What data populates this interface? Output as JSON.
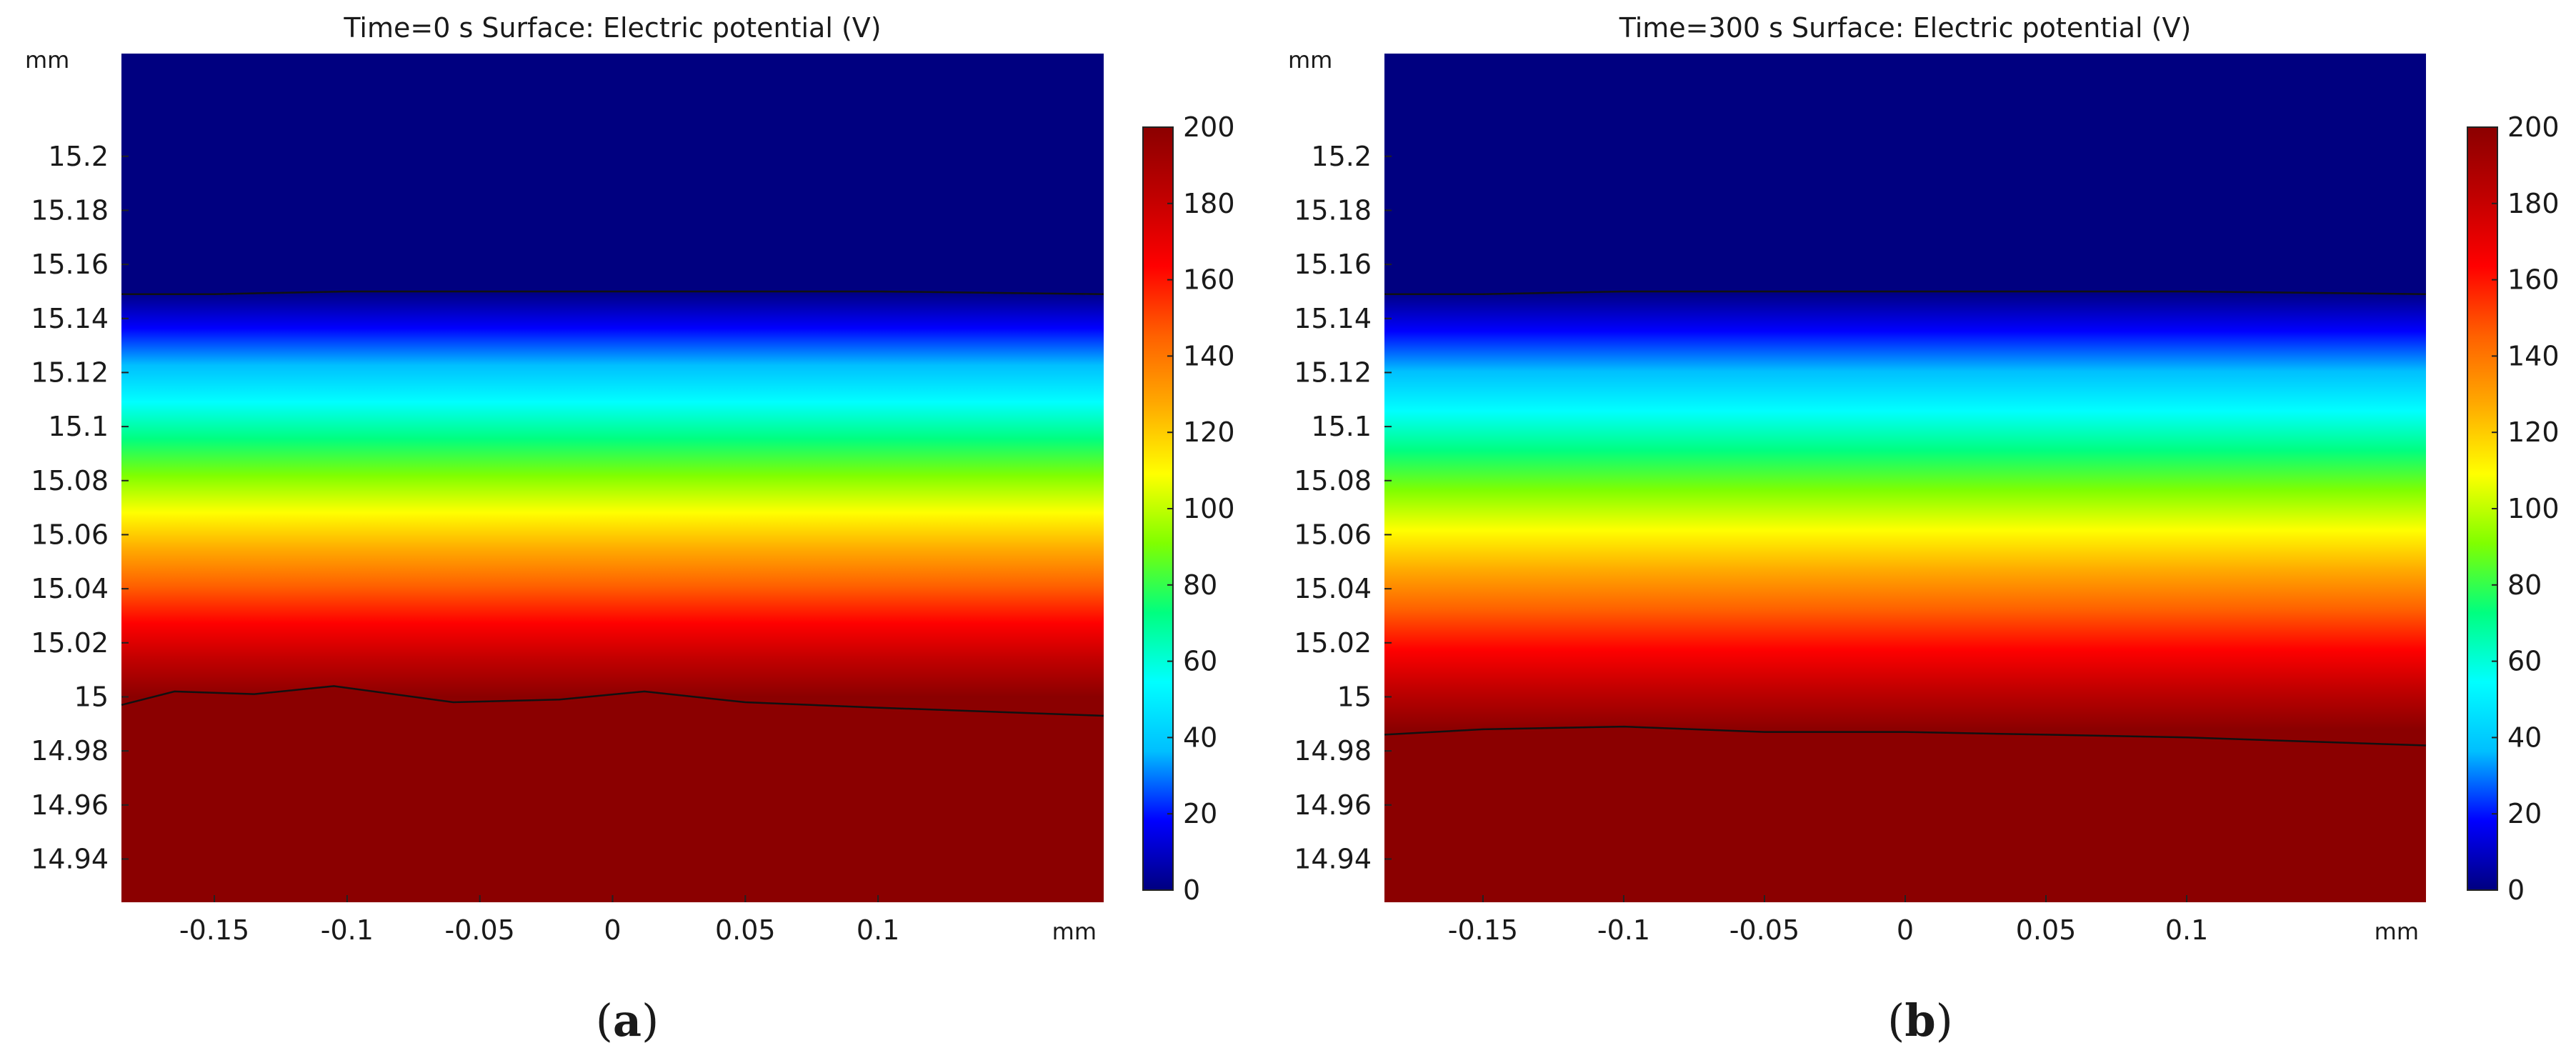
{
  "chart_data": [
    {
      "type": "heatmap",
      "panel_label": "a",
      "title": "Time=0 s   Surface: Electric potential (V)",
      "time": "0 s",
      "quantity": "Electric potential",
      "unit": "V",
      "x_unit_label": "mm",
      "y_unit_label": "mm",
      "xlim": [
        -0.185,
        0.185
      ],
      "ylim": [
        14.924,
        15.238
      ],
      "x_ticks": [
        "-0.15",
        "-0.1",
        "-0.05",
        "0",
        "0.05",
        "0.1"
      ],
      "x_tick_values": [
        -0.15,
        -0.1,
        -0.05,
        0,
        0.05,
        0.1
      ],
      "y_ticks": [
        "15.2",
        "15.18",
        "15.16",
        "15.14",
        "15.12",
        "15.1",
        "15.08",
        "15.06",
        "15.04",
        "15.02",
        "15",
        "14.98",
        "14.96",
        "14.94"
      ],
      "y_tick_values": [
        15.2,
        15.18,
        15.16,
        15.14,
        15.12,
        15.1,
        15.08,
        15.06,
        15.04,
        15.02,
        15.0,
        14.98,
        14.96,
        14.94
      ],
      "colorbar": {
        "range": [
          0,
          200
        ],
        "ticks": [
          "200",
          "180",
          "160",
          "140",
          "120",
          "100",
          "80",
          "60",
          "40",
          "20",
          "0"
        ],
        "tick_values": [
          200,
          180,
          160,
          140,
          120,
          100,
          80,
          60,
          40,
          20,
          0
        ],
        "colormap": "rainbow"
      },
      "potential_profile_y": [
        15.238,
        15.15,
        15.0,
        14.924
      ],
      "potential_profile_v": [
        0,
        0,
        200,
        200
      ],
      "upper_boundary": {
        "x": [
          -0.185,
          -0.15,
          -0.1,
          0,
          0.1,
          0.185
        ],
        "y": [
          15.149,
          15.149,
          15.15,
          15.15,
          15.15,
          15.149
        ]
      },
      "lower_boundary": {
        "x": [
          -0.185,
          -0.165,
          -0.135,
          -0.105,
          -0.06,
          -0.02,
          0.012,
          0.05,
          0.1,
          0.185
        ],
        "y": [
          14.997,
          15.002,
          15.001,
          15.004,
          14.998,
          14.999,
          15.002,
          14.998,
          14.996,
          14.993
        ]
      }
    },
    {
      "type": "heatmap",
      "panel_label": "b",
      "title": "Time=300 s   Surface: Electric potential (V)",
      "time": "300 s",
      "quantity": "Electric potential",
      "unit": "V",
      "x_unit_label": "mm",
      "y_unit_label": "mm",
      "xlim": [
        -0.185,
        0.185
      ],
      "ylim": [
        14.924,
        15.238
      ],
      "x_ticks": [
        "-0.15",
        "-0.1",
        "-0.05",
        "0",
        "0.05",
        "0.1"
      ],
      "x_tick_values": [
        -0.15,
        -0.1,
        -0.05,
        0,
        0.05,
        0.1
      ],
      "y_ticks": [
        "15.2",
        "15.18",
        "15.16",
        "15.14",
        "15.12",
        "15.1",
        "15.08",
        "15.06",
        "15.04",
        "15.02",
        "15",
        "14.98",
        "14.96",
        "14.94"
      ],
      "y_tick_values": [
        15.2,
        15.18,
        15.16,
        15.14,
        15.12,
        15.1,
        15.08,
        15.06,
        15.04,
        15.02,
        15.0,
        14.98,
        14.96,
        14.94
      ],
      "colorbar": {
        "range": [
          0,
          200
        ],
        "ticks": [
          "200",
          "180",
          "160",
          "140",
          "120",
          "100",
          "80",
          "60",
          "40",
          "20",
          "0"
        ],
        "tick_values": [
          200,
          180,
          160,
          140,
          120,
          100,
          80,
          60,
          40,
          20,
          0
        ],
        "colormap": "rainbow"
      },
      "potential_profile_y": [
        15.238,
        15.15,
        14.988,
        14.924
      ],
      "potential_profile_v": [
        0,
        0,
        200,
        200
      ],
      "upper_boundary": {
        "x": [
          -0.185,
          -0.15,
          -0.1,
          0,
          0.1,
          0.185
        ],
        "y": [
          15.149,
          15.149,
          15.15,
          15.15,
          15.15,
          15.149
        ]
      },
      "lower_boundary": {
        "x": [
          -0.185,
          -0.15,
          -0.1,
          -0.05,
          0,
          0.05,
          0.1,
          0.185
        ],
        "y": [
          14.986,
          14.988,
          14.989,
          14.987,
          14.987,
          14.986,
          14.985,
          14.982
        ]
      }
    }
  ],
  "colors": {
    "axis": "#222222",
    "text": "#1a1a1a",
    "boundary": "#111111",
    "colormap_stops": [
      "#000080",
      "#0000ff",
      "#00bfff",
      "#00ffff",
      "#00ff80",
      "#80ff00",
      "#ffff00",
      "#ffaa00",
      "#ff6000",
      "#ff0000",
      "#c00000",
      "#8b0000"
    ]
  }
}
